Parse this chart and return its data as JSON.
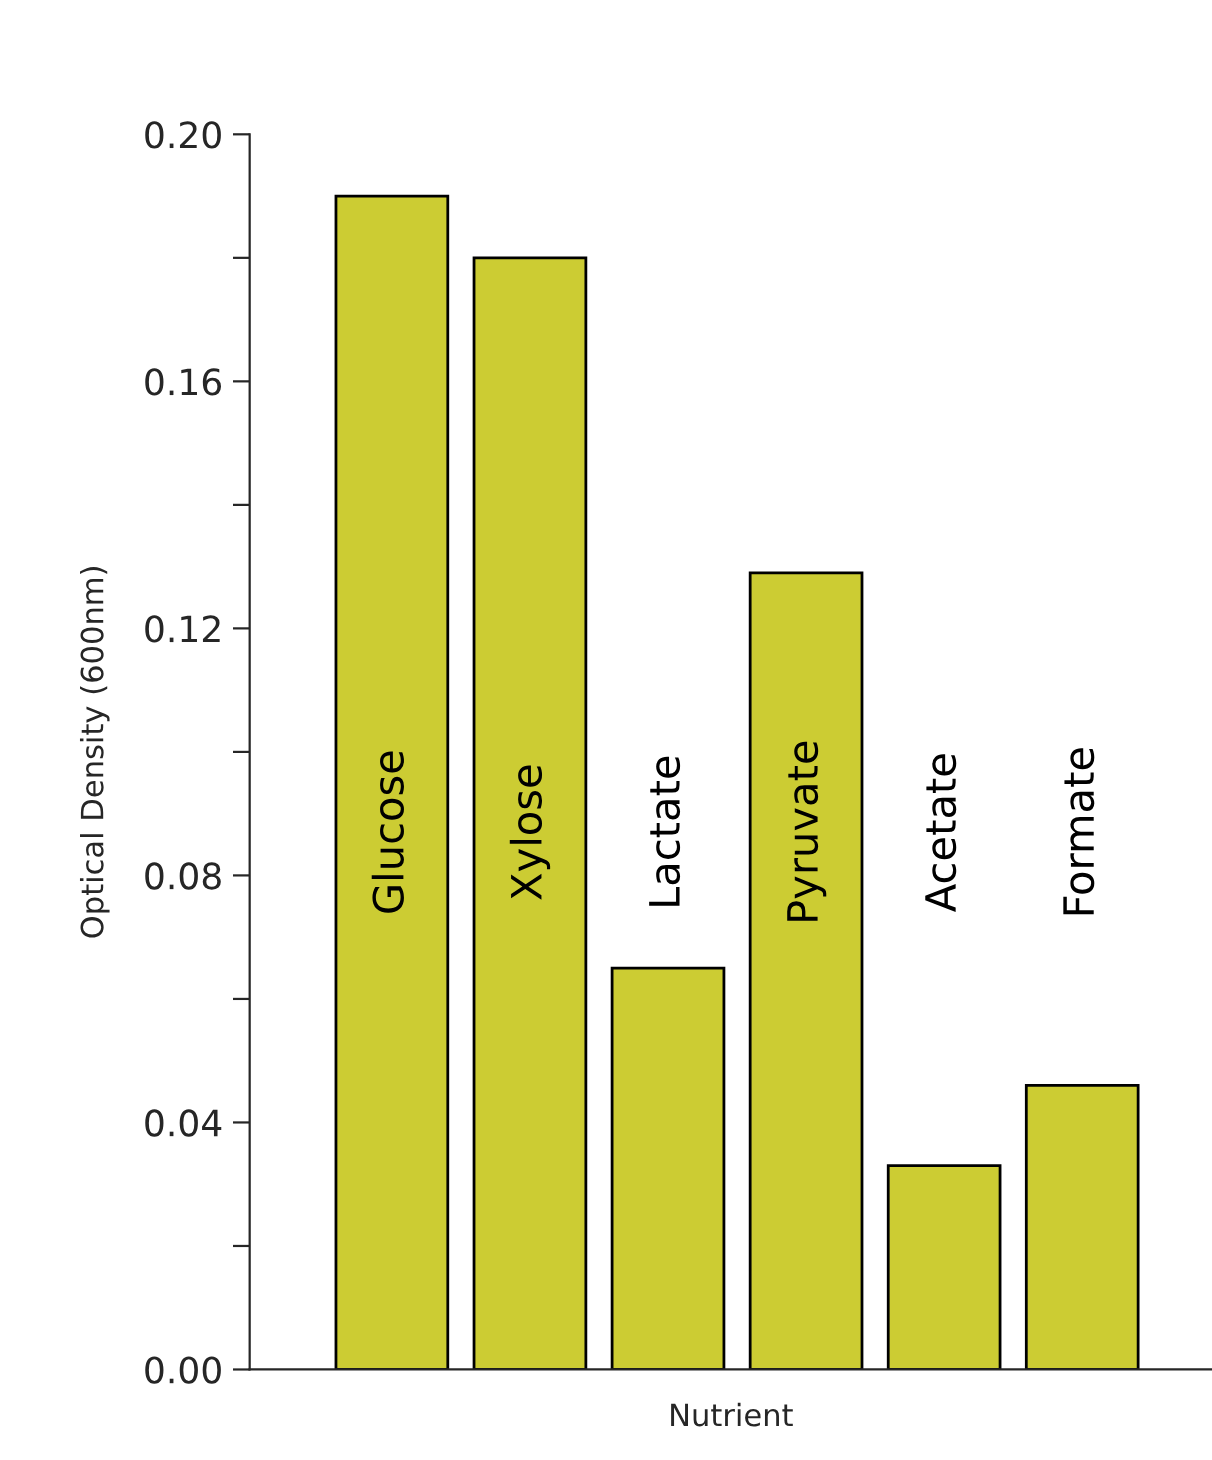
{
  "chart_data": {
    "type": "bar",
    "xlabel": "Nutrient",
    "ylabel": "Optical Density (600nm)",
    "categories": [
      "Glucose",
      "Xylose",
      "Lactate",
      "Pyruvate",
      "Acetate",
      "Formate"
    ],
    "values": [
      0.19,
      0.18,
      0.065,
      0.129,
      0.033,
      0.046
    ],
    "color": "#cccc33",
    "ylim": [
      0,
      0.2
    ],
    "yticks": [
      {
        "value": 0,
        "label": "0.00"
      },
      {
        "value": 0.02,
        "label": null
      },
      {
        "value": 0.04,
        "label": "0.04"
      },
      {
        "value": 0.06,
        "label": null
      },
      {
        "value": 0.08,
        "label": "0.08"
      },
      {
        "value": 0.1,
        "label": null
      },
      {
        "value": 0.12,
        "label": "0.12"
      },
      {
        "value": 0.14,
        "label": null
      },
      {
        "value": 0.16,
        "label": "0.16"
      },
      {
        "value": 0.18,
        "label": null
      },
      {
        "value": 0.2,
        "label": "0.20"
      }
    ],
    "tick_labels": "y",
    "grid": false,
    "legend": false
  }
}
